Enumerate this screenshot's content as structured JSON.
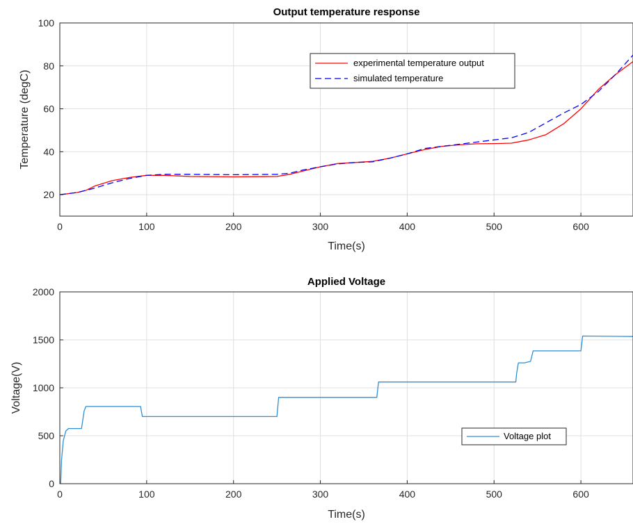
{
  "chart_data": [
    {
      "type": "line",
      "title": "Output temperature response",
      "xlabel": "Time(s)",
      "ylabel": "Temperature (degC)",
      "xlim": [
        0,
        660
      ],
      "ylim": [
        10,
        100
      ],
      "xticks": [
        0,
        100,
        200,
        300,
        400,
        500,
        600
      ],
      "yticks": [
        20,
        40,
        60,
        80,
        100
      ],
      "grid": true,
      "legend_position": "top-right",
      "series": [
        {
          "name": "experimental temperature output",
          "color": "#ff0000",
          "style": "solid",
          "x": [
            0,
            20,
            30,
            40,
            60,
            80,
            100,
            120,
            150,
            200,
            250,
            265,
            280,
            300,
            320,
            340,
            360,
            380,
            400,
            420,
            440,
            460,
            480,
            500,
            520,
            540,
            560,
            580,
            600,
            620,
            640,
            660
          ],
          "y": [
            20,
            21,
            22,
            24,
            26.5,
            28,
            29,
            29,
            28.5,
            28.3,
            28.5,
            29.5,
            31,
            33,
            34.5,
            35,
            35.5,
            37,
            39,
            41,
            42.5,
            43.2,
            43.7,
            43.8,
            44,
            45.5,
            48,
            53,
            60,
            69,
            76,
            82
          ]
        },
        {
          "name": "simulated temperature",
          "color": "#0000ff",
          "style": "dashed",
          "x": [
            0,
            20,
            40,
            60,
            80,
            100,
            120,
            150,
            200,
            250,
            265,
            280,
            300,
            320,
            340,
            360,
            380,
            400,
            420,
            440,
            460,
            480,
            500,
            520,
            540,
            560,
            580,
            600,
            620,
            640,
            660
          ],
          "y": [
            20,
            21,
            23,
            25.5,
            27.5,
            29,
            29.5,
            29.5,
            29.3,
            29.5,
            30,
            31.5,
            33,
            34.3,
            35,
            35.3,
            37,
            39,
            41.5,
            42.5,
            43.5,
            44.5,
            45.5,
            46.5,
            49,
            53.5,
            58,
            62,
            68,
            76,
            85
          ]
        }
      ]
    },
    {
      "type": "line",
      "title": "Applied Voltage",
      "xlabel": "Time(s)",
      "ylabel": "Voltage(V)",
      "xlim": [
        0,
        660
      ],
      "ylim": [
        0,
        2000
      ],
      "xticks": [
        0,
        100,
        200,
        300,
        400,
        500,
        600
      ],
      "yticks": [
        0,
        500,
        1000,
        1500,
        2000
      ],
      "grid": true,
      "legend_position": "bottom-right",
      "series": [
        {
          "name": "Voltage plot",
          "color": "#2e8fd6",
          "style": "solid",
          "x": [
            1,
            2,
            4,
            7,
            10,
            25,
            28,
            30,
            93,
            95,
            240,
            250,
            252,
            365,
            367,
            525,
            526,
            528,
            535,
            542,
            545,
            600,
            602,
            660
          ],
          "y": [
            0,
            250,
            450,
            550,
            575,
            575,
            760,
            805,
            805,
            700,
            700,
            700,
            900,
            900,
            1060,
            1060,
            1150,
            1260,
            1260,
            1275,
            1385,
            1385,
            1540,
            1535
          ]
        }
      ]
    }
  ]
}
